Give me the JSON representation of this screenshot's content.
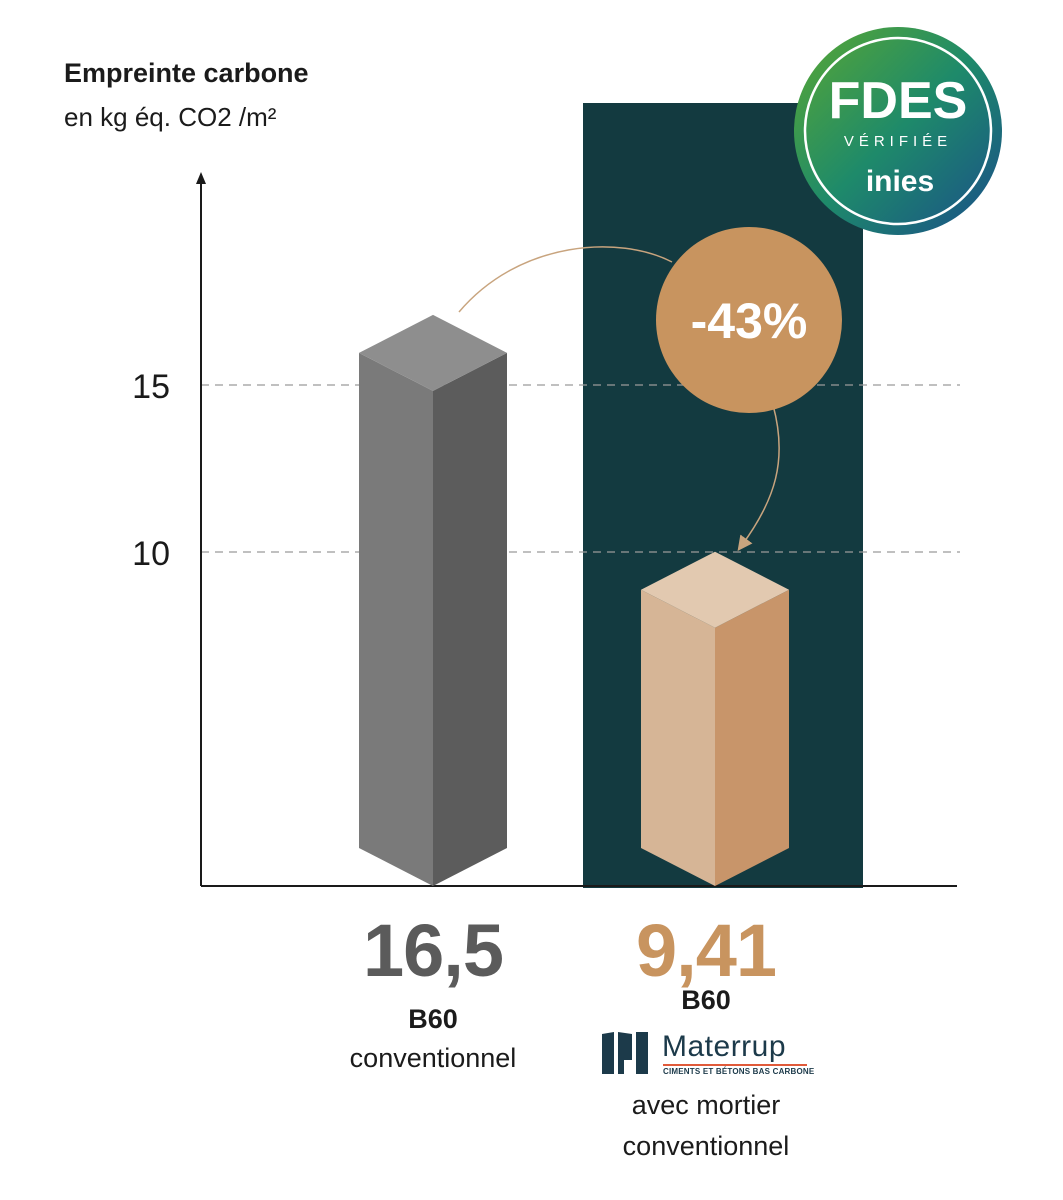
{
  "chart_data": {
    "type": "bar",
    "title": "Empreinte carbone",
    "subtitle": "en kg éq. CO2 /m²",
    "categories": [
      "B60 conventionnel",
      "B60 Materrup avec mortier conventionnel"
    ],
    "values": [
      16.5,
      9.41
    ],
    "value_labels": [
      "16,5",
      "9,41"
    ],
    "yticks": [
      10,
      15
    ],
    "ylim": [
      0,
      25
    ],
    "grid": "dashed at ticks",
    "annotation": "-43%",
    "colors": {
      "bar1_front": "#7a7a7a",
      "bar1_side": "#5c5c5c",
      "bar1_top": "#8e8e8e",
      "bar2_front": "#d6b596",
      "bar2_side": "#c8956a",
      "bar2_top": "#e2c9b0",
      "highlight_panel": "#133a40",
      "annotation_circle": "#c8945f",
      "value1": "#5b5b5b",
      "value2": "#c8945f"
    }
  },
  "labels": {
    "bar1_value": "16,5",
    "bar1_name": "B60",
    "bar1_sub": "conventionnel",
    "bar2_value": "9,41",
    "bar2_name": "B60",
    "bar2_sub_line1": "avec mortier",
    "bar2_sub_line2": "conventionnel"
  },
  "badge": {
    "line1": "FDES",
    "line2": "VÉRIFIÉE",
    "line3": "inies"
  },
  "logo": {
    "name": "Materrup",
    "tagline": "CIMENTS ET BÉTONS BAS CARBONE"
  }
}
